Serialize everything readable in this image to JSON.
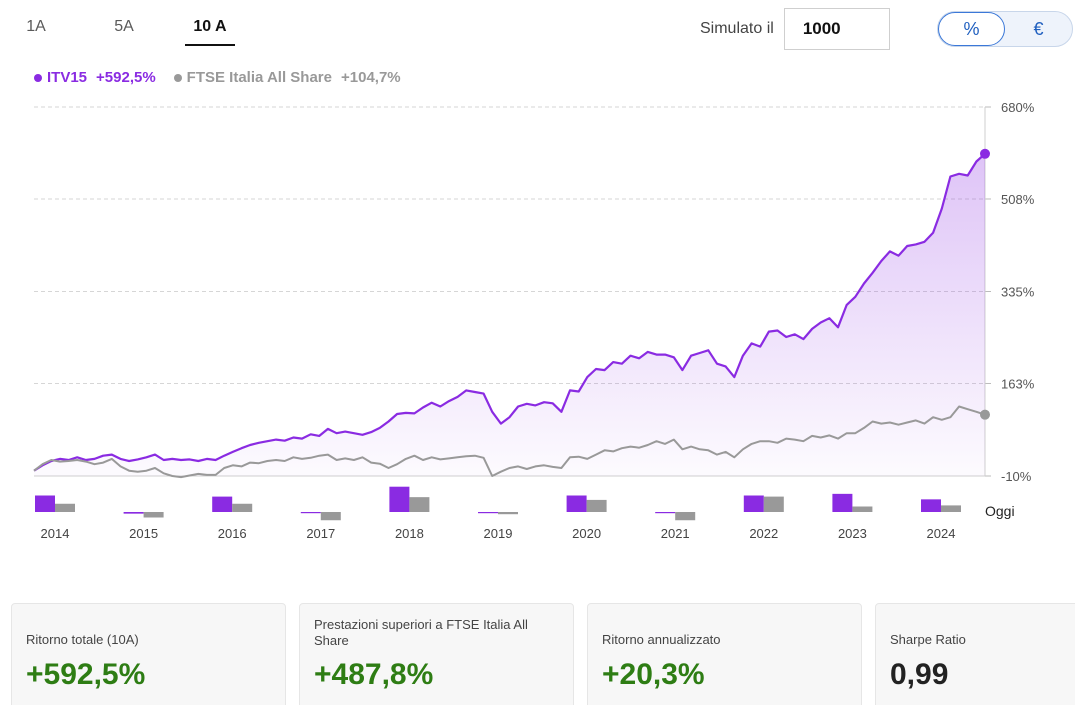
{
  "tabs": [
    {
      "label": "1A",
      "active": false
    },
    {
      "label": "5A",
      "active": false
    },
    {
      "label": "10 A",
      "active": true
    }
  ],
  "simulator": {
    "label": "Simulato il",
    "value": "1000"
  },
  "unit_toggle": {
    "percent": "%",
    "euro": "€",
    "selected": "%"
  },
  "legend": [
    {
      "name": "ITV15",
      "value": "+592,5%",
      "color": "#8a2be2"
    },
    {
      "name": "FTSE Italia All Share",
      "value": "+104,7%",
      "color": "#999999"
    }
  ],
  "chart_data": {
    "type": "line",
    "title": "",
    "xlabel": "",
    "ylabel": "",
    "ylim": [
      -10,
      680
    ],
    "y_ticks": [
      "680%",
      "508%",
      "335%",
      "163%",
      "-10%"
    ],
    "y_tick_values": [
      680,
      508,
      335,
      163,
      -10
    ],
    "grid": "horizontal dashed",
    "x_range": [
      2013.9,
      2024.9
    ],
    "years": [
      "2014",
      "2015",
      "2016",
      "2017",
      "2018",
      "2019",
      "2020",
      "2021",
      "2022",
      "2023",
      "2024"
    ],
    "today_label": "Oggi",
    "series": [
      {
        "name": "ITV15",
        "color": "#8a2be2",
        "fill": true,
        "x": [
          2013.9,
          2014.0,
          2014.1,
          2014.2,
          2014.3,
          2014.4,
          2014.5,
          2014.6,
          2014.7,
          2014.8,
          2014.9,
          2015.0,
          2015.1,
          2015.2,
          2015.3,
          2015.4,
          2015.5,
          2015.6,
          2015.7,
          2015.8,
          2015.9,
          2016.0,
          2016.1,
          2016.2,
          2016.3,
          2016.4,
          2016.5,
          2016.6,
          2016.7,
          2016.8,
          2016.9,
          2017.0,
          2017.1,
          2017.2,
          2017.3,
          2017.4,
          2017.5,
          2017.6,
          2017.7,
          2017.8,
          2017.9,
          2018.0,
          2018.1,
          2018.2,
          2018.3,
          2018.4,
          2018.5,
          2018.6,
          2018.7,
          2018.8,
          2018.9,
          2019.0,
          2019.1,
          2019.2,
          2019.3,
          2019.4,
          2019.5,
          2019.6,
          2019.7,
          2019.8,
          2019.9,
          2020.0,
          2020.1,
          2020.2,
          2020.3,
          2020.4,
          2020.5,
          2020.6,
          2020.7,
          2020.8,
          2020.9,
          2021.0,
          2021.1,
          2021.2,
          2021.3,
          2021.4,
          2021.5,
          2021.6,
          2021.7,
          2021.8,
          2021.9,
          2022.0,
          2022.1,
          2022.2,
          2022.3,
          2022.4,
          2022.5,
          2022.6,
          2022.7,
          2022.8,
          2022.9,
          2023.0,
          2023.1,
          2023.2,
          2023.3,
          2023.4,
          2023.5,
          2023.6,
          2023.7,
          2023.8,
          2023.9,
          2024.0,
          2024.1,
          2024.2,
          2024.3,
          2024.4,
          2024.5,
          2024.6,
          2024.7,
          2024.8,
          2024.9
        ],
        "y": [
          0,
          10,
          18,
          22,
          20,
          25,
          20,
          22,
          28,
          30,
          22,
          18,
          21,
          25,
          30,
          20,
          22,
          20,
          21,
          18,
          22,
          20,
          28,
          35,
          42,
          48,
          52,
          55,
          58,
          56,
          62,
          60,
          68,
          65,
          78,
          70,
          73,
          70,
          67,
          72,
          80,
          92,
          106,
          108,
          107,
          118,
          127,
          120,
          130,
          138,
          150,
          147,
          144,
          110,
          88,
          100,
          120,
          125,
          122,
          128,
          126,
          110,
          150,
          148,
          175,
          190,
          188,
          203,
          200,
          215,
          210,
          222,
          217,
          217,
          212,
          188,
          215,
          220,
          225,
          200,
          195,
          175,
          215,
          238,
          232,
          260,
          262,
          250,
          255,
          246,
          265,
          277,
          285,
          268,
          310,
          325,
          350,
          370,
          392,
          410,
          402,
          420,
          423,
          428,
          445,
          490,
          550,
          555,
          552,
          578,
          592.5
        ]
      },
      {
        "name": "FTSE Italia All Share",
        "color": "#999999",
        "fill": false,
        "x": [
          2013.9,
          2014.0,
          2014.1,
          2014.2,
          2014.3,
          2014.4,
          2014.5,
          2014.6,
          2014.7,
          2014.8,
          2014.9,
          2015.0,
          2015.1,
          2015.2,
          2015.3,
          2015.4,
          2015.5,
          2015.6,
          2015.7,
          2015.8,
          2015.9,
          2016.0,
          2016.1,
          2016.2,
          2016.3,
          2016.4,
          2016.5,
          2016.6,
          2016.7,
          2016.8,
          2016.9,
          2017.0,
          2017.1,
          2017.2,
          2017.3,
          2017.4,
          2017.5,
          2017.6,
          2017.7,
          2017.8,
          2017.9,
          2018.0,
          2018.1,
          2018.2,
          2018.3,
          2018.4,
          2018.5,
          2018.6,
          2018.7,
          2018.8,
          2018.9,
          2019.0,
          2019.1,
          2019.2,
          2019.3,
          2019.4,
          2019.5,
          2019.6,
          2019.7,
          2019.8,
          2019.9,
          2020.0,
          2020.1,
          2020.2,
          2020.3,
          2020.4,
          2020.5,
          2020.6,
          2020.7,
          2020.8,
          2020.9,
          2021.0,
          2021.1,
          2021.2,
          2021.3,
          2021.4,
          2021.5,
          2021.6,
          2021.7,
          2021.8,
          2021.9,
          2022.0,
          2022.1,
          2022.2,
          2022.3,
          2022.4,
          2022.5,
          2022.6,
          2022.7,
          2022.8,
          2022.9,
          2023.0,
          2023.1,
          2023.2,
          2023.3,
          2023.4,
          2023.5,
          2023.6,
          2023.7,
          2023.8,
          2023.9,
          2024.0,
          2024.1,
          2024.2,
          2024.3,
          2024.4,
          2024.5,
          2024.6,
          2024.7,
          2024.8,
          2024.9
        ],
        "y": [
          0,
          12,
          20,
          17,
          18,
          20,
          17,
          12,
          15,
          22,
          8,
          0,
          -2,
          0,
          5,
          -5,
          -10,
          -12,
          -9,
          -6,
          -8,
          -8,
          5,
          10,
          8,
          15,
          14,
          18,
          20,
          18,
          25,
          22,
          24,
          28,
          30,
          20,
          23,
          20,
          25,
          15,
          13,
          5,
          12,
          22,
          28,
          20,
          25,
          21,
          23,
          25,
          27,
          28,
          24,
          -10,
          -2,
          5,
          8,
          3,
          8,
          10,
          7,
          5,
          25,
          26,
          22,
          30,
          38,
          36,
          42,
          45,
          43,
          48,
          55,
          50,
          58,
          40,
          45,
          40,
          38,
          30,
          35,
          25,
          40,
          50,
          55,
          55,
          52,
          60,
          58,
          55,
          65,
          62,
          66,
          60,
          70,
          70,
          80,
          92,
          88,
          90,
          86,
          90,
          94,
          88,
          100,
          95,
          100,
          120,
          115,
          110,
          104.7
        ]
      }
    ],
    "annual_bars": {
      "itv15": [
        30,
        -3,
        28,
        -2,
        46,
        -1,
        30,
        -2,
        30,
        33,
        23
      ],
      "ftse": [
        15,
        -10,
        15,
        -15,
        27,
        -4,
        22,
        -15,
        28,
        10,
        12
      ]
    }
  },
  "cards": [
    {
      "label": "Ritorno totale (10A)",
      "value": "+592,5%",
      "color": "#2e7d14"
    },
    {
      "label": "Prestazioni superiori a FTSE Italia All Share",
      "value": "+487,8%",
      "color": "#2e7d14"
    },
    {
      "label": "Ritorno annualizzato",
      "value": "+20,3%",
      "color": "#2e7d14"
    },
    {
      "label": "Sharpe Ratio",
      "value": "0,99",
      "color": "#222222"
    }
  ]
}
